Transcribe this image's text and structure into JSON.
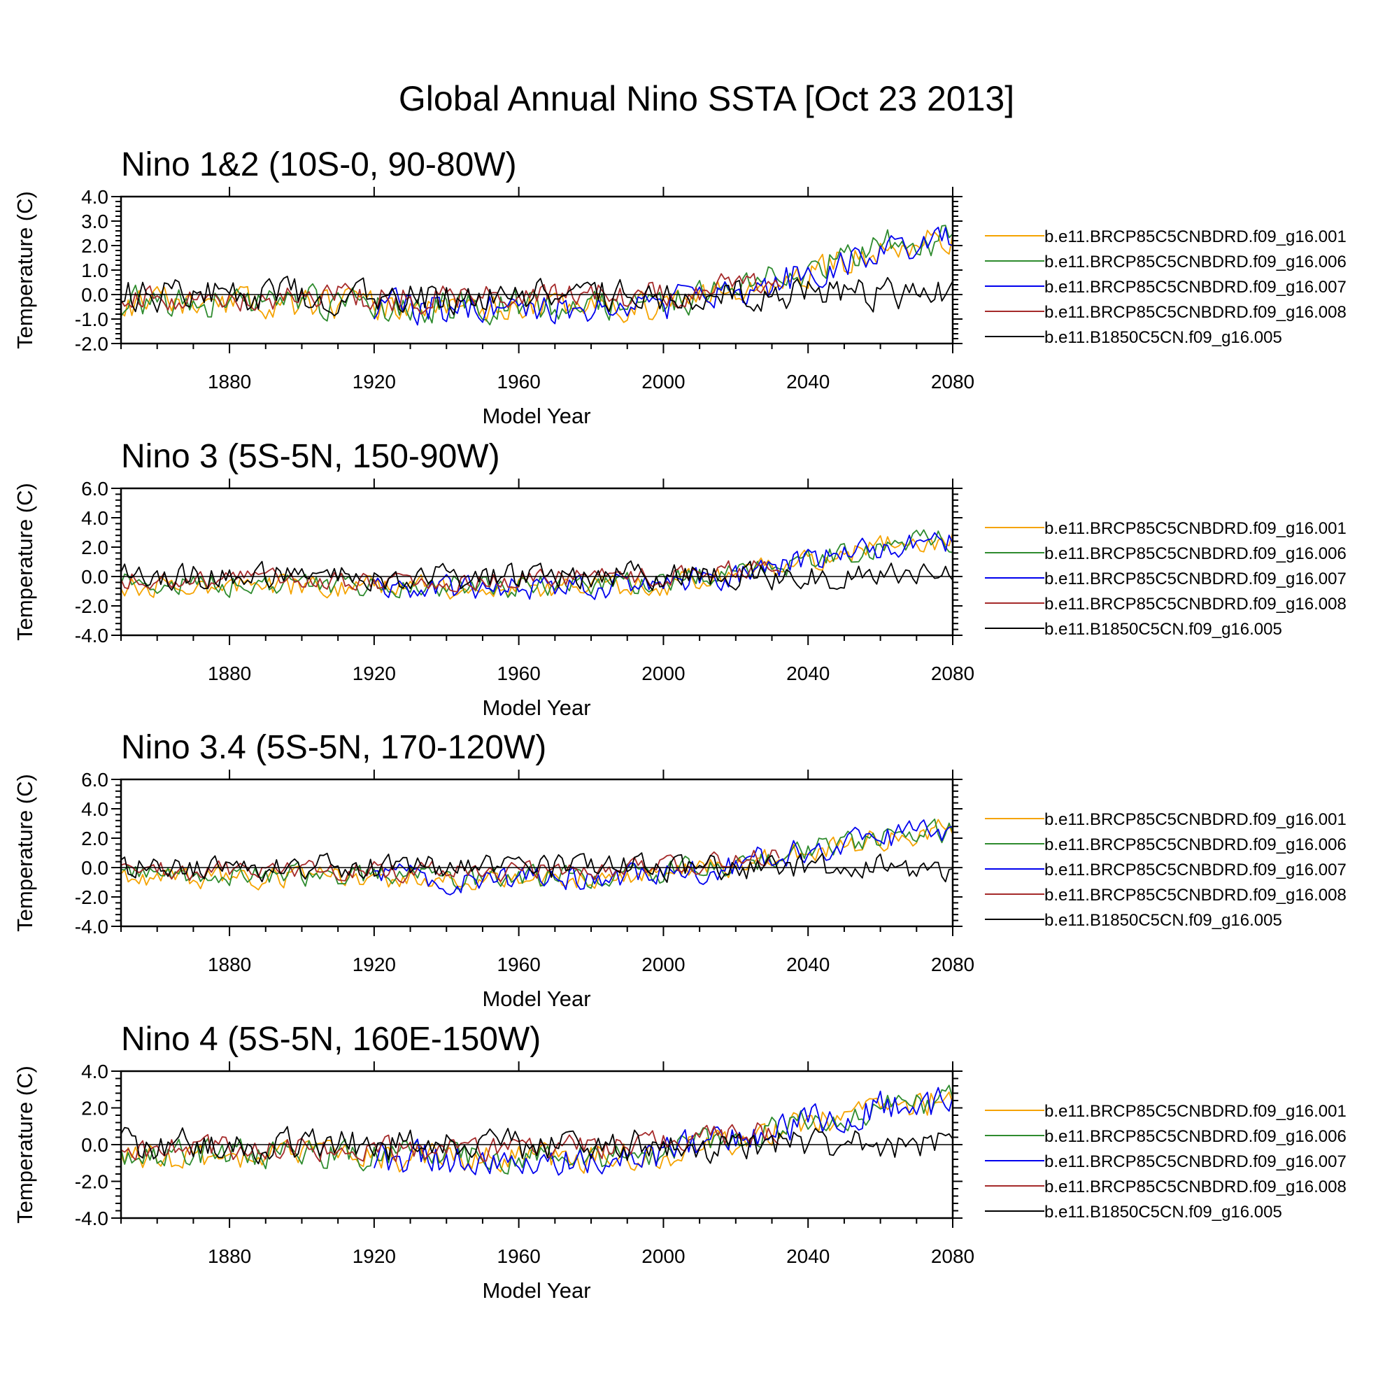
{
  "title": "Global Annual Nino SSTA [Oct 23 2013]",
  "chart_data": [
    {
      "type": "line",
      "title": "Nino 1&2 (10S-0, 90-80W)",
      "xlabel": "Model Year",
      "ylabel": "Temperature (C)",
      "xlim": [
        1850,
        2080
      ],
      "ylim": [
        -2.0,
        4.0
      ],
      "xticks": [
        1880,
        1920,
        1960,
        2000,
        2040,
        2080
      ],
      "xtick_labels": [
        "1880",
        "1920",
        "1960",
        "2000",
        "2040",
        "2080"
      ],
      "yticks": [
        -2.0,
        -1.0,
        0.0,
        1.0,
        2.0,
        3.0,
        4.0
      ],
      "ytick_labels": [
        "-2.0",
        "-1.0",
        "0.0",
        "1.0",
        "2.0",
        "3.0",
        "4.0"
      ],
      "reference_line_y": 0.0,
      "legend_position": "right",
      "series": [
        {
          "name": "b.e11.BRCP85C5CNBDRD.f09_g16.001",
          "color": "#f5a300",
          "x": [
            1850,
            1900,
            1950,
            2000,
            2006,
            2020,
            2040,
            2060,
            2080
          ],
          "trend": [
            -0.4,
            -0.4,
            -0.55,
            -0.45,
            -0.15,
            0.0,
            0.8,
            1.9,
            2.4
          ],
          "variability": 0.55,
          "seed": 11
        },
        {
          "name": "b.e11.BRCP85C5CNBDRD.f09_g16.006",
          "color": "#2e8b2e",
          "x": [
            1850,
            1900,
            1950,
            2000,
            2006,
            2020,
            2040,
            2060,
            2080
          ],
          "trend": [
            -0.35,
            -0.35,
            -0.5,
            -0.4,
            -0.1,
            0.1,
            1.0,
            2.0,
            2.3
          ],
          "variability": 0.6,
          "seed": 23
        },
        {
          "name": "b.e11.BRCP85C5CNBDRD.f09_g16.007",
          "color": "#0000ee",
          "x": [
            1920,
            1950,
            2000,
            2006,
            2020,
            2040,
            2060,
            2080
          ],
          "trend": [
            -0.5,
            -0.6,
            -0.45,
            -0.15,
            0.0,
            0.9,
            1.8,
            2.2
          ],
          "variability": 0.6,
          "seed": 37
        },
        {
          "name": "b.e11.BRCP85C5CNBDRD.f09_g16.008",
          "color": "#a52a2a",
          "x": [
            1850,
            1900,
            1950,
            2000,
            2006,
            2020,
            2032
          ],
          "trend": [
            -0.1,
            -0.1,
            -0.2,
            0.0,
            0.1,
            0.3,
            0.5
          ],
          "variability": 0.5,
          "seed": 41
        },
        {
          "name": "b.e11.B1850C5CN.f09_g16.005",
          "color": "#000000",
          "x": [
            1850,
            1900,
            1950,
            2000,
            2040,
            2080
          ],
          "trend": [
            0.0,
            0.0,
            -0.1,
            0.0,
            0.0,
            0.0
          ],
          "variability": 0.6,
          "seed": 53
        }
      ]
    },
    {
      "type": "line",
      "title": "Nino 3 (5S-5N, 150-90W)",
      "xlabel": "Model Year",
      "ylabel": "Temperature (C)",
      "xlim": [
        1850,
        2080
      ],
      "ylim": [
        -4.0,
        6.0
      ],
      "xticks": [
        1880,
        1920,
        1960,
        2000,
        2040,
        2080
      ],
      "xtick_labels": [
        "1880",
        "1920",
        "1960",
        "2000",
        "2040",
        "2080"
      ],
      "yticks": [
        -4.0,
        -2.0,
        0.0,
        2.0,
        4.0,
        6.0
      ],
      "ytick_labels": [
        "-4.0",
        "-2.0",
        "0.0",
        "2.0",
        "4.0",
        "6.0"
      ],
      "reference_line_y": 0.0,
      "legend_position": "right",
      "series": [
        {
          "name": "b.e11.BRCP85C5CNBDRD.f09_g16.001",
          "color": "#f5a300",
          "x": [
            1850,
            1900,
            1950,
            2000,
            2006,
            2020,
            2040,
            2060,
            2080
          ],
          "trend": [
            -0.6,
            -0.6,
            -0.8,
            -0.6,
            -0.2,
            0.1,
            1.0,
            2.0,
            2.6
          ],
          "variability": 0.7,
          "seed": 13
        },
        {
          "name": "b.e11.BRCP85C5CNBDRD.f09_g16.006",
          "color": "#2e8b2e",
          "x": [
            1850,
            1900,
            1950,
            2000,
            2006,
            2020,
            2040,
            2060,
            2080
          ],
          "trend": [
            -0.5,
            -0.5,
            -0.7,
            -0.5,
            -0.1,
            0.2,
            1.1,
            2.0,
            2.5
          ],
          "variability": 0.7,
          "seed": 29
        },
        {
          "name": "b.e11.BRCP85C5CNBDRD.f09_g16.007",
          "color": "#0000ee",
          "x": [
            1920,
            1950,
            2000,
            2006,
            2020,
            2040,
            2060,
            2080
          ],
          "trend": [
            -0.7,
            -0.8,
            -0.6,
            -0.2,
            0.1,
            1.1,
            2.0,
            2.4
          ],
          "variability": 0.75,
          "seed": 31
        },
        {
          "name": "b.e11.BRCP85C5CNBDRD.f09_g16.008",
          "color": "#a52a2a",
          "x": [
            1850,
            1900,
            1950,
            2000,
            2006,
            2020,
            2032
          ],
          "trend": [
            -0.2,
            -0.2,
            -0.3,
            0.0,
            0.2,
            0.5,
            0.8
          ],
          "variability": 0.6,
          "seed": 43
        },
        {
          "name": "b.e11.B1850C5CN.f09_g16.005",
          "color": "#000000",
          "x": [
            1850,
            1900,
            1950,
            2000,
            2040,
            2080
          ],
          "trend": [
            0.0,
            0.0,
            -0.1,
            0.0,
            0.0,
            0.0
          ],
          "variability": 0.8,
          "seed": 59
        }
      ]
    },
    {
      "type": "line",
      "title": "Nino 3.4 (5S-5N, 170-120W)",
      "xlabel": "Model Year",
      "ylabel": "Temperature (C)",
      "xlim": [
        1850,
        2080
      ],
      "ylim": [
        -4.0,
        6.0
      ],
      "xticks": [
        1880,
        1920,
        1960,
        2000,
        2040,
        2080
      ],
      "xtick_labels": [
        "1880",
        "1920",
        "1960",
        "2000",
        "2040",
        "2080"
      ],
      "yticks": [
        -4.0,
        -2.0,
        0.0,
        2.0,
        4.0,
        6.0
      ],
      "ytick_labels": [
        "-4.0",
        "-2.0",
        "0.0",
        "2.0",
        "4.0",
        "6.0"
      ],
      "reference_line_y": 0.0,
      "legend_position": "right",
      "series": [
        {
          "name": "b.e11.BRCP85C5CNBDRD.f09_g16.001",
          "color": "#f5a300",
          "x": [
            1850,
            1900,
            1950,
            2000,
            2006,
            2020,
            2040,
            2060,
            2080
          ],
          "trend": [
            -0.6,
            -0.6,
            -0.8,
            -0.6,
            -0.2,
            0.2,
            1.1,
            2.0,
            2.6
          ],
          "variability": 0.7,
          "seed": 17
        },
        {
          "name": "b.e11.BRCP85C5CNBDRD.f09_g16.006",
          "color": "#2e8b2e",
          "x": [
            1850,
            1900,
            1950,
            2000,
            2006,
            2020,
            2040,
            2060,
            2080
          ],
          "trend": [
            -0.5,
            -0.5,
            -0.7,
            -0.5,
            -0.1,
            0.3,
            1.2,
            2.1,
            2.5
          ],
          "variability": 0.7,
          "seed": 19
        },
        {
          "name": "b.e11.BRCP85C5CNBDRD.f09_g16.007",
          "color": "#0000ee",
          "x": [
            1920,
            1950,
            2000,
            2006,
            2020,
            2040,
            2060,
            2080
          ],
          "trend": [
            -0.7,
            -0.8,
            -0.6,
            -0.2,
            0.2,
            1.2,
            2.0,
            2.4
          ],
          "variability": 0.8,
          "seed": 33
        },
        {
          "name": "b.e11.BRCP85C5CNBDRD.f09_g16.008",
          "color": "#a52a2a",
          "x": [
            1850,
            1900,
            1950,
            2000,
            2006,
            2020,
            2032
          ],
          "trend": [
            -0.2,
            -0.2,
            -0.3,
            0.0,
            0.2,
            0.5,
            0.8
          ],
          "variability": 0.6,
          "seed": 47
        },
        {
          "name": "b.e11.B1850C5CN.f09_g16.005",
          "color": "#000000",
          "x": [
            1850,
            1900,
            1950,
            2000,
            2040,
            2080
          ],
          "trend": [
            0.0,
            0.0,
            -0.1,
            0.0,
            0.0,
            0.0
          ],
          "variability": 0.8,
          "seed": 61
        }
      ]
    },
    {
      "type": "line",
      "title": "Nino 4 (5S-5N, 160E-150W)",
      "xlabel": "Model Year",
      "ylabel": "Temperature (C)",
      "xlim": [
        1850,
        2080
      ],
      "ylim": [
        -4.0,
        4.0
      ],
      "xticks": [
        1880,
        1920,
        1960,
        2000,
        2040,
        2080
      ],
      "xtick_labels": [
        "1880",
        "1920",
        "1960",
        "2000",
        "2040",
        "2080"
      ],
      "yticks": [
        -4.0,
        -2.0,
        0.0,
        2.0,
        4.0
      ],
      "ytick_labels": [
        "-4.0",
        "-2.0",
        "0.0",
        "2.0",
        "4.0"
      ],
      "reference_line_y": 0.0,
      "legend_position": "right",
      "series": [
        {
          "name": "b.e11.BRCP85C5CNBDRD.f09_g16.001",
          "color": "#f5a300",
          "x": [
            1850,
            1900,
            1950,
            2000,
            2006,
            2020,
            2040,
            2060,
            2080
          ],
          "trend": [
            -0.6,
            -0.6,
            -0.8,
            -0.6,
            -0.2,
            0.3,
            1.1,
            2.0,
            2.5
          ],
          "variability": 0.7,
          "seed": 71
        },
        {
          "name": "b.e11.BRCP85C5CNBDRD.f09_g16.006",
          "color": "#2e8b2e",
          "x": [
            1850,
            1900,
            1950,
            2000,
            2006,
            2020,
            2040,
            2060,
            2080
          ],
          "trend": [
            -0.5,
            -0.5,
            -0.7,
            -0.5,
            -0.1,
            0.3,
            1.2,
            2.0,
            2.4
          ],
          "variability": 0.7,
          "seed": 73
        },
        {
          "name": "b.e11.BRCP85C5CNBDRD.f09_g16.007",
          "color": "#0000ee",
          "x": [
            1920,
            1950,
            2000,
            2006,
            2020,
            2040,
            2060,
            2080
          ],
          "trend": [
            -0.7,
            -0.8,
            -0.6,
            -0.2,
            0.3,
            1.2,
            2.0,
            2.3
          ],
          "variability": 0.8,
          "seed": 79
        },
        {
          "name": "b.e11.BRCP85C5CNBDRD.f09_g16.008",
          "color": "#a52a2a",
          "x": [
            1850,
            1900,
            1950,
            2000,
            2006,
            2020,
            2032
          ],
          "trend": [
            -0.2,
            -0.2,
            -0.3,
            0.0,
            0.2,
            0.5,
            0.8
          ],
          "variability": 0.6,
          "seed": 83
        },
        {
          "name": "b.e11.B1850C5CN.f09_g16.005",
          "color": "#000000",
          "x": [
            1850,
            1900,
            1950,
            2000,
            2040,
            2080
          ],
          "trend": [
            0.0,
            0.0,
            -0.1,
            0.0,
            0.0,
            0.0
          ],
          "variability": 0.8,
          "seed": 89
        }
      ]
    }
  ]
}
